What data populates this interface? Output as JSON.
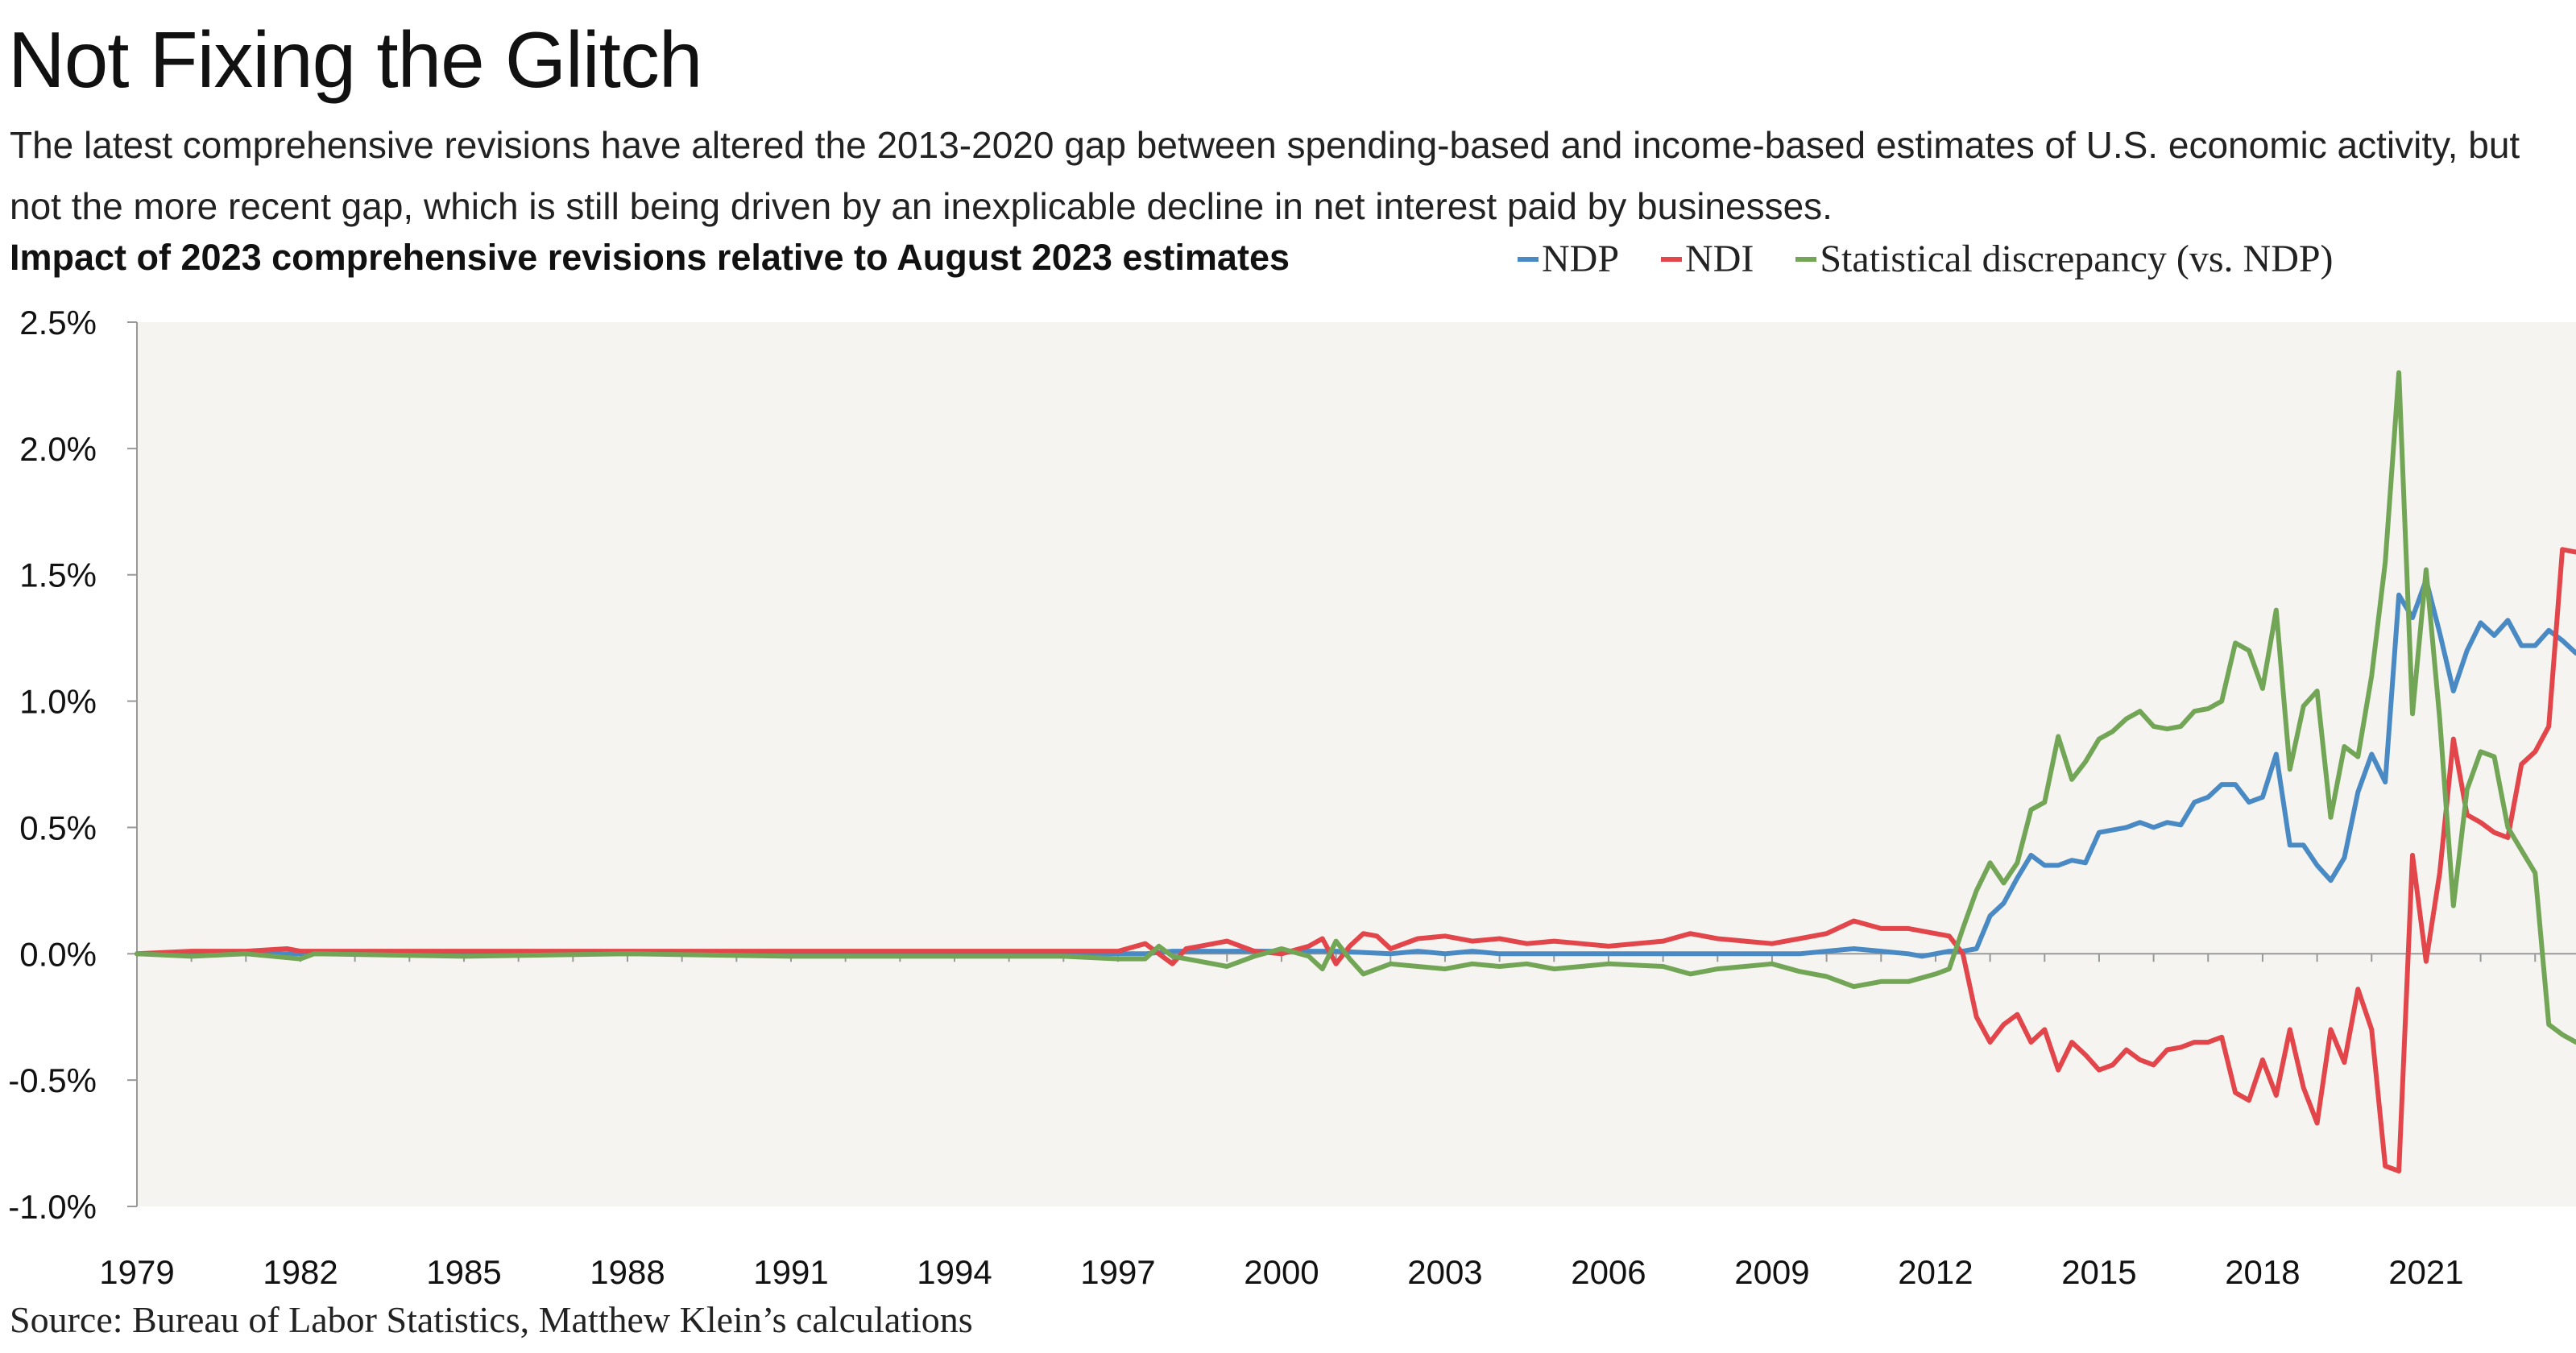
{
  "title": "Not Fixing the Glitch",
  "subtitle": "The latest comprehensive revisions have altered the 2013-2020 gap between spending-based and income-based estimates of U.S. economic activity, but not the more recent gap, which is still being driven by an inexplicable decline in net interest paid by businesses.",
  "chart_heading": "Impact of 2023 comprehensive revisions relative to August 2023 estimates",
  "source": "Source: Bureau of Labor Statistics, Matthew Klein’s calculations",
  "legend": [
    {
      "name": "NDP",
      "color": "#4a8ac4"
    },
    {
      "name": "NDI",
      "color": "#e2454a"
    },
    {
      "name": "Statistical discrepancy (vs. NDP)",
      "color": "#72a656"
    }
  ],
  "chart_data": {
    "type": "line",
    "xlim": [
      1979.0,
      2023.75
    ],
    "ylim": [
      -1.0,
      2.5
    ],
    "y_ticks": [
      -1.0,
      -0.5,
      0.0,
      0.5,
      1.0,
      1.5,
      2.0,
      2.5
    ],
    "y_tick_labels": [
      "-1.0%",
      "-0.5%",
      "0.0%",
      "0.5%",
      "1.0%",
      "1.5%",
      "2.0%",
      "2.5%"
    ],
    "x_ticks": [
      1979,
      1982,
      1985,
      1988,
      1991,
      1994,
      1997,
      2000,
      2003,
      2006,
      2009,
      2012,
      2015,
      2018,
      2021
    ],
    "x_tick_labels": [
      "1979",
      "1982",
      "1985",
      "1988",
      "1991",
      "1994",
      "1997",
      "2000",
      "2003",
      "2006",
      "2009",
      "2012",
      "2015",
      "2018",
      "2021"
    ],
    "grid": false,
    "background": "#f5f4f0",
    "series": [
      {
        "name": "NDP",
        "color": "#4a8ac4",
        "points": [
          [
            1979.0,
            0.0
          ],
          [
            1980.0,
            0.0
          ],
          [
            1981.0,
            0.0
          ],
          [
            1982.0,
            0.0
          ],
          [
            1985.0,
            0.0
          ],
          [
            1990.0,
            0.0
          ],
          [
            1995.0,
            0.0
          ],
          [
            1997.5,
            0.0
          ],
          [
            1998.0,
            0.01
          ],
          [
            1999.0,
            0.01
          ],
          [
            2000.0,
            0.01
          ],
          [
            2001.0,
            0.01
          ],
          [
            2002.0,
            0.0
          ],
          [
            2002.5,
            0.01
          ],
          [
            2003.0,
            0.0
          ],
          [
            2003.5,
            0.01
          ],
          [
            2004.0,
            0.0
          ],
          [
            2005.0,
            0.0
          ],
          [
            2006.0,
            0.0
          ],
          [
            2007.0,
            0.0
          ],
          [
            2008.0,
            0.0
          ],
          [
            2009.0,
            0.0
          ],
          [
            2009.5,
            0.0
          ],
          [
            2010.0,
            0.01
          ],
          [
            2010.5,
            0.02
          ],
          [
            2011.0,
            0.01
          ],
          [
            2011.5,
            0.0
          ],
          [
            2011.75,
            -0.01
          ],
          [
            2012.0,
            0.0
          ],
          [
            2012.25,
            0.01
          ],
          [
            2012.5,
            0.01
          ],
          [
            2012.75,
            0.02
          ],
          [
            2013.0,
            0.15
          ],
          [
            2013.25,
            0.2
          ],
          [
            2013.5,
            0.3
          ],
          [
            2013.75,
            0.39
          ],
          [
            2014.0,
            0.35
          ],
          [
            2014.25,
            0.35
          ],
          [
            2014.5,
            0.37
          ],
          [
            2014.75,
            0.36
          ],
          [
            2015.0,
            0.48
          ],
          [
            2015.25,
            0.49
          ],
          [
            2015.5,
            0.5
          ],
          [
            2015.75,
            0.52
          ],
          [
            2016.0,
            0.5
          ],
          [
            2016.25,
            0.52
          ],
          [
            2016.5,
            0.51
          ],
          [
            2016.75,
            0.6
          ],
          [
            2017.0,
            0.62
          ],
          [
            2017.25,
            0.67
          ],
          [
            2017.5,
            0.67
          ],
          [
            2017.75,
            0.6
          ],
          [
            2018.0,
            0.62
          ],
          [
            2018.25,
            0.79
          ],
          [
            2018.5,
            0.43
          ],
          [
            2018.75,
            0.43
          ],
          [
            2019.0,
            0.35
          ],
          [
            2019.25,
            0.29
          ],
          [
            2019.5,
            0.38
          ],
          [
            2019.75,
            0.64
          ],
          [
            2020.0,
            0.79
          ],
          [
            2020.25,
            0.68
          ],
          [
            2020.5,
            1.42
          ],
          [
            2020.75,
            1.33
          ],
          [
            2021.0,
            1.48
          ],
          [
            2021.25,
            1.27
          ],
          [
            2021.5,
            1.04
          ],
          [
            2021.75,
            1.2
          ],
          [
            2022.0,
            1.31
          ],
          [
            2022.25,
            1.26
          ],
          [
            2022.5,
            1.32
          ],
          [
            2022.75,
            1.22
          ],
          [
            2023.0,
            1.22
          ],
          [
            2023.25,
            1.28
          ],
          [
            2023.5,
            1.24
          ],
          [
            2023.75,
            1.19
          ]
        ]
      },
      {
        "name": "NDI",
        "color": "#e2454a",
        "points": [
          [
            1979.0,
            0.0
          ],
          [
            1980.0,
            0.01
          ],
          [
            1981.0,
            0.01
          ],
          [
            1981.75,
            0.02
          ],
          [
            1982.0,
            0.01
          ],
          [
            1985.0,
            0.01
          ],
          [
            1988.0,
            0.01
          ],
          [
            1991.0,
            0.01
          ],
          [
            1994.0,
            0.01
          ],
          [
            1996.0,
            0.01
          ],
          [
            1997.0,
            0.01
          ],
          [
            1997.5,
            0.04
          ],
          [
            1997.75,
            0.0
          ],
          [
            1998.0,
            -0.04
          ],
          [
            1998.25,
            0.02
          ],
          [
            1998.5,
            0.03
          ],
          [
            1999.0,
            0.05
          ],
          [
            1999.5,
            0.01
          ],
          [
            2000.0,
            0.0
          ],
          [
            2000.5,
            0.03
          ],
          [
            2000.75,
            0.06
          ],
          [
            2001.0,
            -0.04
          ],
          [
            2001.25,
            0.03
          ],
          [
            2001.5,
            0.08
          ],
          [
            2001.75,
            0.07
          ],
          [
            2002.0,
            0.02
          ],
          [
            2002.5,
            0.06
          ],
          [
            2003.0,
            0.07
          ],
          [
            2003.5,
            0.05
          ],
          [
            2004.0,
            0.06
          ],
          [
            2004.5,
            0.04
          ],
          [
            2005.0,
            0.05
          ],
          [
            2005.5,
            0.04
          ],
          [
            2006.0,
            0.03
          ],
          [
            2007.0,
            0.05
          ],
          [
            2007.5,
            0.08
          ],
          [
            2008.0,
            0.06
          ],
          [
            2008.5,
            0.05
          ],
          [
            2009.0,
            0.04
          ],
          [
            2009.5,
            0.06
          ],
          [
            2010.0,
            0.08
          ],
          [
            2010.5,
            0.13
          ],
          [
            2011.0,
            0.1
          ],
          [
            2011.5,
            0.1
          ],
          [
            2012.0,
            0.08
          ],
          [
            2012.25,
            0.07
          ],
          [
            2012.5,
            0.0
          ],
          [
            2012.75,
            -0.25
          ],
          [
            2013.0,
            -0.35
          ],
          [
            2013.25,
            -0.28
          ],
          [
            2013.5,
            -0.24
          ],
          [
            2013.75,
            -0.35
          ],
          [
            2014.0,
            -0.3
          ],
          [
            2014.25,
            -0.46
          ],
          [
            2014.5,
            -0.35
          ],
          [
            2014.75,
            -0.4
          ],
          [
            2015.0,
            -0.46
          ],
          [
            2015.25,
            -0.44
          ],
          [
            2015.5,
            -0.38
          ],
          [
            2015.75,
            -0.42
          ],
          [
            2016.0,
            -0.44
          ],
          [
            2016.25,
            -0.38
          ],
          [
            2016.5,
            -0.37
          ],
          [
            2016.75,
            -0.35
          ],
          [
            2017.0,
            -0.35
          ],
          [
            2017.25,
            -0.33
          ],
          [
            2017.5,
            -0.55
          ],
          [
            2017.75,
            -0.58
          ],
          [
            2018.0,
            -0.42
          ],
          [
            2018.25,
            -0.56
          ],
          [
            2018.5,
            -0.3
          ],
          [
            2018.75,
            -0.53
          ],
          [
            2019.0,
            -0.67
          ],
          [
            2019.25,
            -0.3
          ],
          [
            2019.5,
            -0.43
          ],
          [
            2019.75,
            -0.14
          ],
          [
            2020.0,
            -0.3
          ],
          [
            2020.25,
            -0.84
          ],
          [
            2020.5,
            -0.86
          ],
          [
            2020.75,
            0.39
          ],
          [
            2021.0,
            -0.03
          ],
          [
            2021.25,
            0.32
          ],
          [
            2021.5,
            0.85
          ],
          [
            2021.75,
            0.55
          ],
          [
            2022.0,
            0.52
          ],
          [
            2022.25,
            0.48
          ],
          [
            2022.5,
            0.46
          ],
          [
            2022.75,
            0.75
          ],
          [
            2023.0,
            0.8
          ],
          [
            2023.25,
            0.9
          ],
          [
            2023.5,
            1.6
          ],
          [
            2023.75,
            1.59
          ]
        ]
      },
      {
        "name": "Statistical discrepancy (vs. NDP)",
        "color": "#72a656",
        "points": [
          [
            1979.0,
            0.0
          ],
          [
            1980.0,
            -0.01
          ],
          [
            1981.0,
            0.0
          ],
          [
            1982.0,
            -0.02
          ],
          [
            1982.25,
            0.0
          ],
          [
            1985.0,
            -0.01
          ],
          [
            1988.0,
            0.0
          ],
          [
            1991.0,
            -0.01
          ],
          [
            1994.0,
            -0.01
          ],
          [
            1996.0,
            -0.01
          ],
          [
            1997.0,
            -0.02
          ],
          [
            1997.5,
            -0.02
          ],
          [
            1997.75,
            0.03
          ],
          [
            1998.0,
            -0.01
          ],
          [
            1998.5,
            -0.03
          ],
          [
            1999.0,
            -0.05
          ],
          [
            1999.5,
            -0.01
          ],
          [
            2000.0,
            0.02
          ],
          [
            2000.5,
            -0.01
          ],
          [
            2000.75,
            -0.06
          ],
          [
            2001.0,
            0.05
          ],
          [
            2001.25,
            -0.02
          ],
          [
            2001.5,
            -0.08
          ],
          [
            2002.0,
            -0.04
          ],
          [
            2002.5,
            -0.05
          ],
          [
            2003.0,
            -0.06
          ],
          [
            2003.5,
            -0.04
          ],
          [
            2004.0,
            -0.05
          ],
          [
            2004.5,
            -0.04
          ],
          [
            2005.0,
            -0.06
          ],
          [
            2005.5,
            -0.05
          ],
          [
            2006.0,
            -0.04
          ],
          [
            2007.0,
            -0.05
          ],
          [
            2007.5,
            -0.08
          ],
          [
            2008.0,
            -0.06
          ],
          [
            2008.5,
            -0.05
          ],
          [
            2009.0,
            -0.04
          ],
          [
            2009.5,
            -0.07
          ],
          [
            2010.0,
            -0.09
          ],
          [
            2010.5,
            -0.13
          ],
          [
            2011.0,
            -0.11
          ],
          [
            2011.5,
            -0.11
          ],
          [
            2012.0,
            -0.08
          ],
          [
            2012.25,
            -0.06
          ],
          [
            2012.5,
            0.1
          ],
          [
            2012.75,
            0.25
          ],
          [
            2013.0,
            0.36
          ],
          [
            2013.25,
            0.28
          ],
          [
            2013.5,
            0.36
          ],
          [
            2013.75,
            0.57
          ],
          [
            2014.0,
            0.6
          ],
          [
            2014.25,
            0.86
          ],
          [
            2014.5,
            0.69
          ],
          [
            2014.75,
            0.76
          ],
          [
            2015.0,
            0.85
          ],
          [
            2015.25,
            0.88
          ],
          [
            2015.5,
            0.93
          ],
          [
            2015.75,
            0.96
          ],
          [
            2016.0,
            0.9
          ],
          [
            2016.25,
            0.89
          ],
          [
            2016.5,
            0.9
          ],
          [
            2016.75,
            0.96
          ],
          [
            2017.0,
            0.97
          ],
          [
            2017.25,
            1.0
          ],
          [
            2017.5,
            1.23
          ],
          [
            2017.75,
            1.2
          ],
          [
            2018.0,
            1.05
          ],
          [
            2018.25,
            1.36
          ],
          [
            2018.5,
            0.73
          ],
          [
            2018.75,
            0.98
          ],
          [
            2019.0,
            1.04
          ],
          [
            2019.25,
            0.54
          ],
          [
            2019.5,
            0.82
          ],
          [
            2019.75,
            0.78
          ],
          [
            2020.0,
            1.1
          ],
          [
            2020.25,
            1.55
          ],
          [
            2020.5,
            2.3
          ],
          [
            2020.75,
            0.95
          ],
          [
            2021.0,
            1.52
          ],
          [
            2021.25,
            0.93
          ],
          [
            2021.5,
            0.19
          ],
          [
            2021.75,
            0.65
          ],
          [
            2022.0,
            0.8
          ],
          [
            2022.25,
            0.78
          ],
          [
            2022.5,
            0.5
          ],
          [
            2022.75,
            0.41
          ],
          [
            2023.0,
            0.32
          ],
          [
            2023.25,
            -0.28
          ],
          [
            2023.5,
            -0.32
          ],
          [
            2023.75,
            -0.35
          ]
        ]
      }
    ]
  }
}
